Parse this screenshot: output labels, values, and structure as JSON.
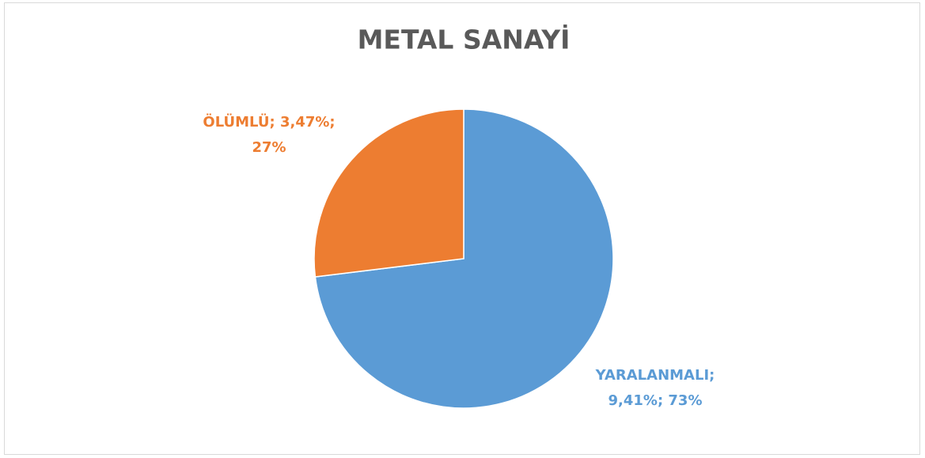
{
  "chart_data": {
    "type": "pie",
    "title": "METAL SANAYİ",
    "values": [
      9.41,
      3.47
    ],
    "colors": [
      "#5b9bd5",
      "#ed7d31"
    ],
    "data_labels": [
      [
        "YARALANMALI;",
        "9,41%; 73%"
      ],
      [
        "ÖLÜMLÜ; 3,47%;",
        "27%"
      ]
    ],
    "start_angle": 0,
    "direction": "clockwise"
  }
}
